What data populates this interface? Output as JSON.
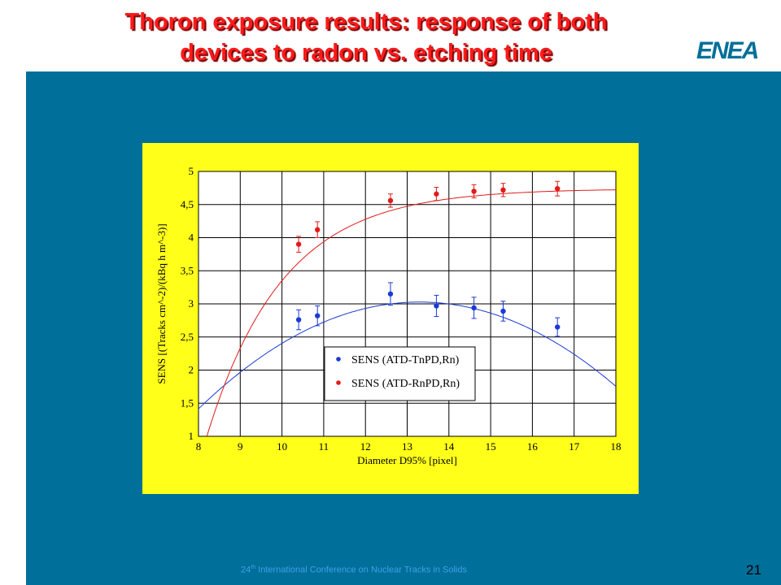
{
  "slide": {
    "title_line1": "Thoron exposure results: response of both",
    "title_line2": "devices to radon vs. etching time",
    "footer_ordinal": "24",
    "footer_sup": "th",
    "footer_rest": " International Conference on Nuclear Tracks in Solids",
    "page_number": "21",
    "logo_text": "ENEA",
    "colors": {
      "title": "#ff1a1a",
      "panel": "#006f99",
      "chart_bg": "#ffff1a",
      "logo": "#006f99"
    }
  },
  "chart_data": {
    "type": "scatter",
    "title": "",
    "xlabel": "Diameter D95%  [pixel]",
    "ylabel": "SENS [(Tracks cm^-2)/(kBq h m^-3)]",
    "xlim": [
      8,
      18
    ],
    "ylim": [
      1,
      5
    ],
    "xticks": [
      "8",
      "9",
      "10",
      "11",
      "12",
      "13",
      "14",
      "15",
      "16",
      "17",
      "18"
    ],
    "yticks": [
      "1",
      "1,5",
      "2",
      "2,5",
      "3",
      "3,5",
      "4",
      "4,5",
      "5"
    ],
    "grid": true,
    "legend_position": "center-right",
    "series": [
      {
        "name": "SENS (ATD-TnPD,Rn)",
        "color": "#1a3ad6",
        "x": [
          10.4,
          10.85,
          12.6,
          13.7,
          14.6,
          15.3,
          16.6
        ],
        "y": [
          2.76,
          2.82,
          3.15,
          2.97,
          2.94,
          2.89,
          2.65
        ],
        "err": [
          0.15,
          0.15,
          0.17,
          0.16,
          0.16,
          0.15,
          0.14
        ],
        "fit": {
          "a": -0.0575,
          "b": 1.529,
          "c": -7.137
        }
      },
      {
        "name": "SENS (ATD-RnPD,Rn)",
        "color": "#e21a1a",
        "x": [
          10.4,
          10.85,
          12.6,
          13.7,
          14.6,
          15.3,
          16.6
        ],
        "y": [
          3.9,
          4.12,
          4.56,
          4.66,
          4.7,
          4.72,
          4.74
        ],
        "err": [
          0.12,
          0.12,
          0.1,
          0.1,
          0.1,
          0.1,
          0.11
        ],
        "fit": {
          "ymax": 4.74,
          "x0": 8.2,
          "k": 0.55,
          "y0": 1.0
        }
      }
    ]
  }
}
